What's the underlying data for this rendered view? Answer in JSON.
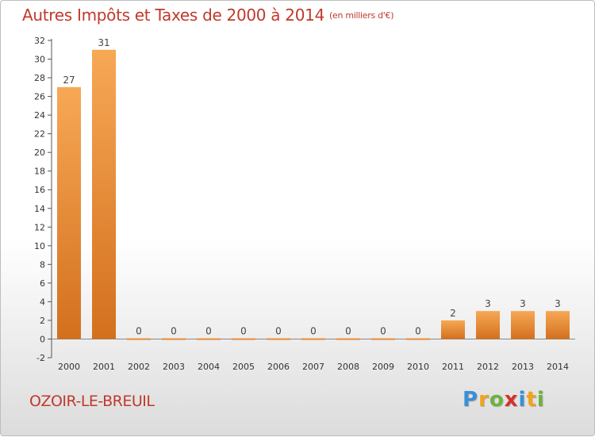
{
  "chart_data": {
    "type": "bar",
    "title": "Autres Impôts et Taxes de 2000 à 2014",
    "unit": "(en milliers d'€)",
    "categories": [
      "2000",
      "2001",
      "2002",
      "2003",
      "2004",
      "2005",
      "2006",
      "2007",
      "2008",
      "2009",
      "2010",
      "2011",
      "2012",
      "2013",
      "2014"
    ],
    "values": [
      27,
      31,
      0,
      0,
      0,
      0,
      0,
      0,
      0,
      0,
      0,
      2,
      3,
      3,
      3
    ],
    "ylim": [
      -2,
      32
    ],
    "yticks": [
      -2,
      0,
      2,
      4,
      6,
      8,
      10,
      12,
      14,
      16,
      18,
      20,
      22,
      24,
      26,
      28,
      30,
      32
    ],
    "grid": false,
    "bar_color_light": "#f7a855",
    "bar_color_dark": "#d3701e"
  },
  "commune": "OZOIR-LE-BREUIL",
  "logo": {
    "letters": [
      {
        "ch": "P",
        "color": "#3a8fd6"
      },
      {
        "ch": "r",
        "color": "#f2a21b"
      },
      {
        "ch": "o",
        "color": "#6bb33c"
      },
      {
        "ch": "x",
        "color": "#d6312b"
      },
      {
        "ch": "i",
        "color": "#3a8fd6"
      },
      {
        "ch": "t",
        "color": "#f2a21b"
      },
      {
        "ch": "i",
        "color": "#6bb33c"
      }
    ]
  },
  "colors": {
    "title": "#c0392b",
    "commune": "#c0392b"
  }
}
